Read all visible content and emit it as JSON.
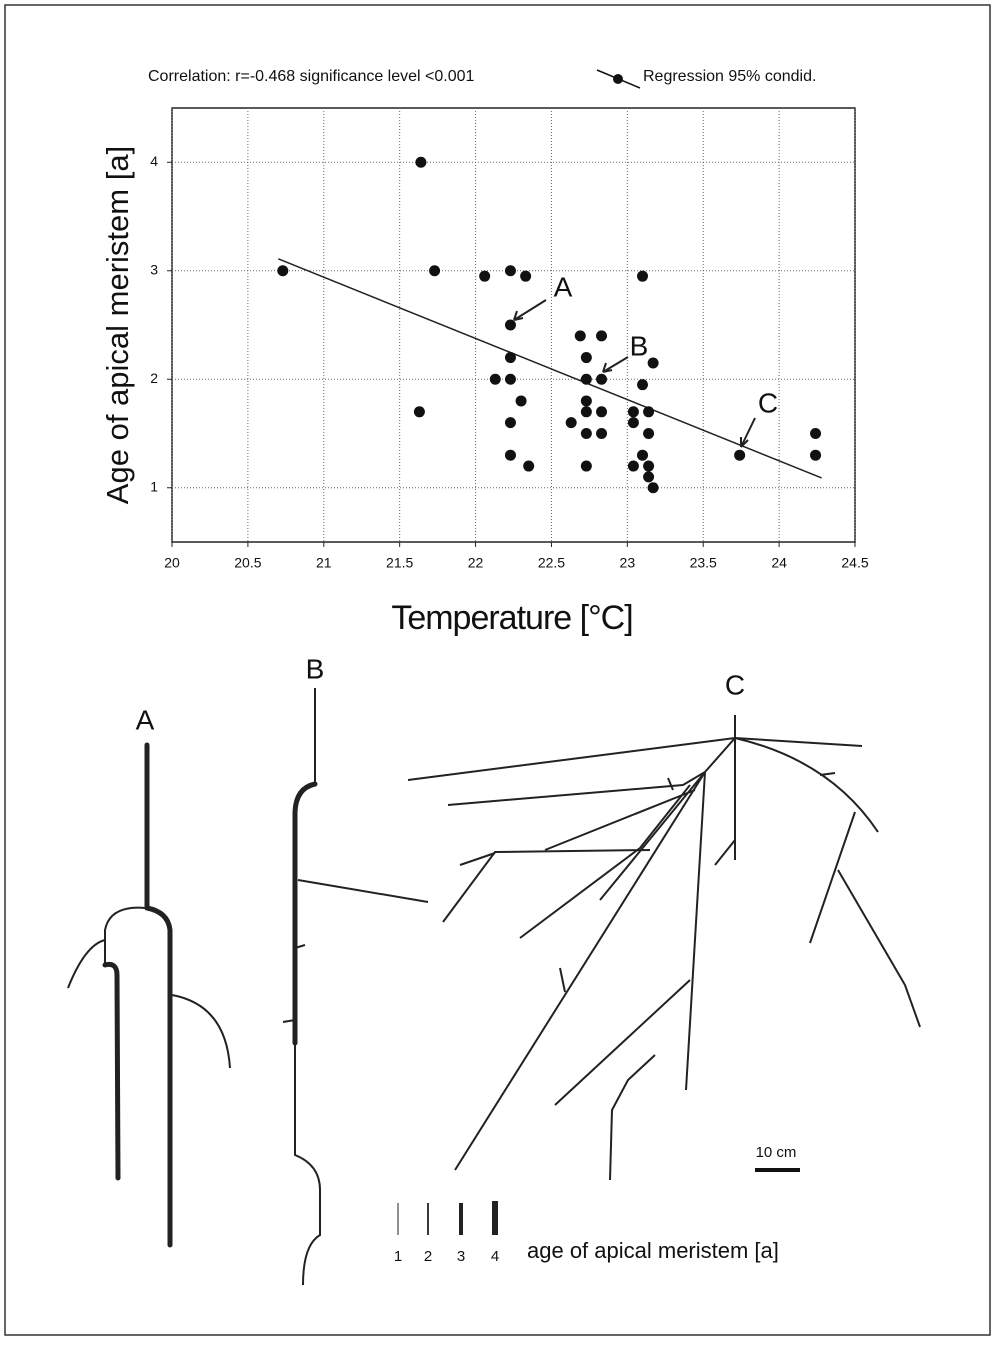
{
  "chart_data": {
    "type": "scatter",
    "annotation": "Correlation: r=-0.468  significance level <0.001",
    "xlabel": "Temperature [°C]",
    "ylabel": "Age of apical meristem [a]",
    "xlim": [
      20,
      24.5
    ],
    "ylim": [
      0.5,
      4.5
    ],
    "xticks": [
      20,
      20.5,
      21,
      21.5,
      22,
      22.5,
      23,
      23.5,
      24,
      24.5
    ],
    "yticks": [
      1,
      2,
      3,
      4
    ],
    "grid": true,
    "x": [
      20.73,
      21.64,
      21.73,
      21.63,
      22.06,
      22.23,
      22.33,
      22.23,
      22.23,
      22.13,
      22.23,
      22.3,
      22.23,
      22.23,
      22.35,
      23.1,
      22.69,
      22.83,
      22.73,
      23.17,
      22.73,
      22.83,
      23.1,
      22.73,
      22.73,
      22.83,
      23.04,
      23.14,
      22.63,
      23.04,
      22.73,
      22.83,
      23.14,
      23.1,
      23.04,
      22.73,
      23.14,
      23.14,
      23.17,
      23.74,
      24.24,
      24.24
    ],
    "series": [
      {
        "name": "Regression 95% condid.",
        "color": "#111111",
        "values": [
          3.0,
          4.0,
          3.0,
          1.7,
          2.95,
          3.0,
          2.95,
          2.5,
          2.2,
          2.0,
          2.0,
          1.8,
          1.6,
          1.3,
          1.2,
          2.95,
          2.4,
          2.4,
          2.2,
          2.15,
          2.0,
          2.0,
          1.95,
          1.8,
          1.7,
          1.7,
          1.7,
          1.7,
          1.6,
          1.6,
          1.5,
          1.5,
          1.5,
          1.3,
          1.2,
          1.2,
          1.2,
          1.1,
          1.0,
          1.3,
          1.5,
          1.3
        ]
      }
    ],
    "regression": {
      "x": [
        20.7,
        24.28
      ],
      "y": [
        3.11,
        1.09
      ]
    },
    "point_labels": [
      "A",
      "B",
      "C"
    ]
  },
  "diagram": {
    "labels": [
      "A",
      "B",
      "C"
    ],
    "scale": "10 cm",
    "legend_ticks": [
      "1",
      "2",
      "3",
      "4"
    ],
    "legend_title": "age of apical meristem [a]"
  }
}
